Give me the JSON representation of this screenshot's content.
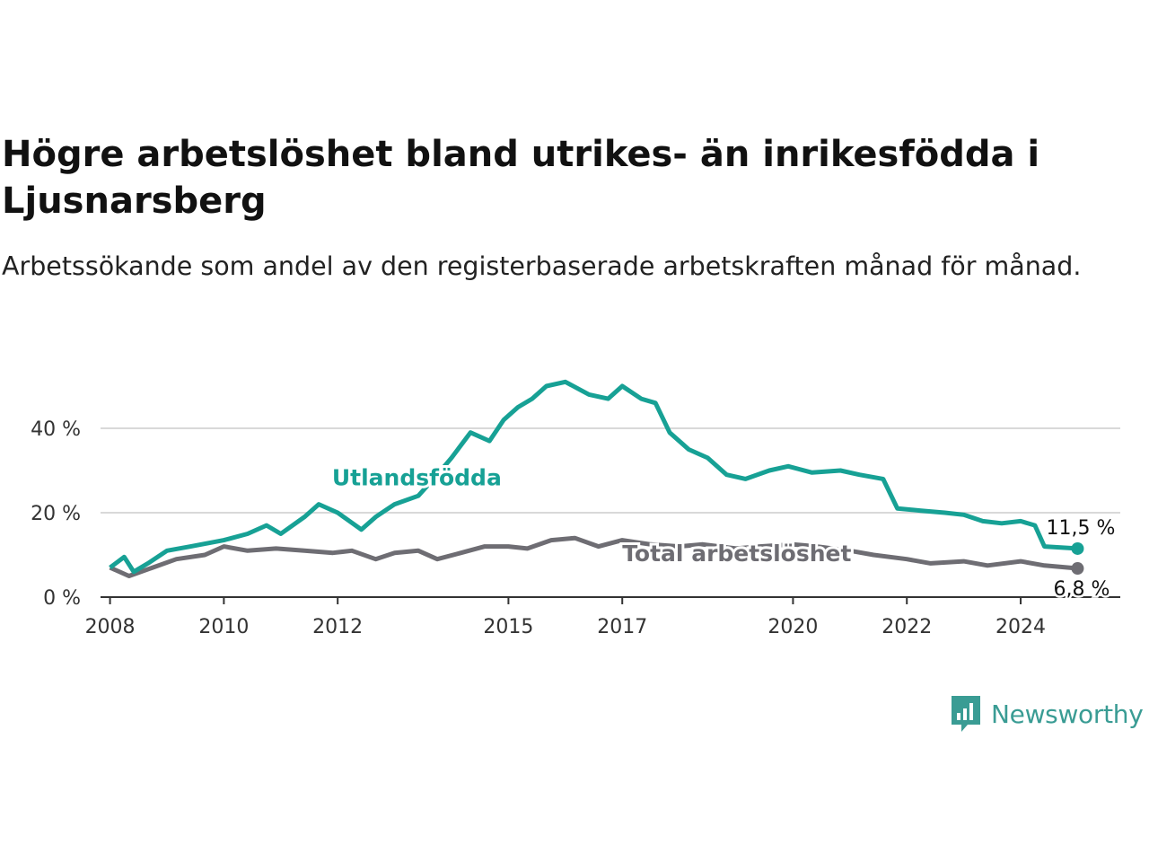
{
  "header": {
    "title": "Högre arbetslöshet bland utrikes- än inrikesfödda i Ljusnarsberg",
    "subtitle": "Arbetssökande som andel av den registerbaserade arbetskraften månad för månad."
  },
  "brand": {
    "name": "Newsworthy",
    "icon": "newsworthy-chart-bubble-icon",
    "color": "#3a9c94"
  },
  "colors": {
    "utlandsfodda": "#17a195",
    "total": "#6e6d73",
    "grid": "#d9d9d9",
    "axis": "#333333"
  },
  "chart_data": {
    "type": "line",
    "xlabel": "",
    "ylabel": "",
    "x_ticks": [
      "2008",
      "2010",
      "2012",
      "2015",
      "2017",
      "2020",
      "2022",
      "2024"
    ],
    "y_ticks": [
      "0 %",
      "20 %",
      "40 %"
    ],
    "ylim": [
      0,
      50
    ],
    "xlim": [
      "2007-11",
      "2025-10"
    ],
    "grid": true,
    "legend": "inline labels",
    "series": [
      {
        "name": "Utlandsfödda",
        "end_label": "11,5 %",
        "points": [
          [
            "2008-01",
            7
          ],
          [
            "2008-04",
            9.5
          ],
          [
            "2008-06",
            6
          ],
          [
            "2008-09",
            8
          ],
          [
            "2009-01",
            11
          ],
          [
            "2009-06",
            12
          ],
          [
            "2010-01",
            13.5
          ],
          [
            "2010-06",
            15
          ],
          [
            "2010-10",
            17
          ],
          [
            "2011-01",
            15
          ],
          [
            "2011-06",
            19
          ],
          [
            "2011-09",
            22
          ],
          [
            "2012-01",
            20
          ],
          [
            "2012-06",
            16
          ],
          [
            "2012-09",
            19
          ],
          [
            "2013-01",
            22
          ],
          [
            "2013-06",
            24
          ],
          [
            "2013-10",
            29
          ],
          [
            "2014-01",
            33
          ],
          [
            "2014-05",
            39
          ],
          [
            "2014-09",
            37
          ],
          [
            "2014-12",
            42
          ],
          [
            "2015-03",
            45
          ],
          [
            "2015-06",
            47
          ],
          [
            "2015-09",
            50
          ],
          [
            "2016-01",
            51
          ],
          [
            "2016-06",
            48
          ],
          [
            "2016-10",
            47
          ],
          [
            "2017-01",
            50
          ],
          [
            "2017-05",
            47
          ],
          [
            "2017-08",
            46
          ],
          [
            "2017-11",
            39
          ],
          [
            "2018-03",
            35
          ],
          [
            "2018-07",
            33
          ],
          [
            "2018-11",
            29
          ],
          [
            "2019-03",
            28
          ],
          [
            "2019-08",
            30
          ],
          [
            "2019-12",
            31
          ],
          [
            "2020-05",
            29.5
          ],
          [
            "2020-11",
            30
          ],
          [
            "2021-03",
            29
          ],
          [
            "2021-08",
            28
          ],
          [
            "2021-11",
            21
          ],
          [
            "2022-04",
            20.5
          ],
          [
            "2022-09",
            20
          ],
          [
            "2023-01",
            19.5
          ],
          [
            "2023-05",
            18
          ],
          [
            "2023-09",
            17.5
          ],
          [
            "2024-01",
            18
          ],
          [
            "2024-04",
            17
          ],
          [
            "2024-06",
            12
          ],
          [
            "2025-01",
            11.5
          ]
        ]
      },
      {
        "name": "Total arbetslöshet",
        "end_label": "6,8 %",
        "points": [
          [
            "2008-01",
            7
          ],
          [
            "2008-05",
            5
          ],
          [
            "2008-10",
            7
          ],
          [
            "2009-03",
            9
          ],
          [
            "2009-09",
            10
          ],
          [
            "2010-01",
            12
          ],
          [
            "2010-06",
            11
          ],
          [
            "2010-12",
            11.5
          ],
          [
            "2011-06",
            11
          ],
          [
            "2011-12",
            10.5
          ],
          [
            "2012-04",
            11
          ],
          [
            "2012-09",
            9
          ],
          [
            "2013-01",
            10.5
          ],
          [
            "2013-06",
            11
          ],
          [
            "2013-10",
            9
          ],
          [
            "2014-03",
            10.5
          ],
          [
            "2014-08",
            12
          ],
          [
            "2015-01",
            12
          ],
          [
            "2015-05",
            11.5
          ],
          [
            "2015-10",
            13.5
          ],
          [
            "2016-03",
            14
          ],
          [
            "2016-08",
            12
          ],
          [
            "2017-01",
            13.5
          ],
          [
            "2017-07",
            12.5
          ],
          [
            "2018-01",
            12
          ],
          [
            "2018-06",
            12.5
          ],
          [
            "2019-01",
            11.5
          ],
          [
            "2019-06",
            12
          ],
          [
            "2020-01",
            12.5
          ],
          [
            "2020-06",
            12
          ],
          [
            "2021-01",
            11
          ],
          [
            "2021-06",
            10
          ],
          [
            "2022-01",
            9
          ],
          [
            "2022-06",
            8
          ],
          [
            "2023-01",
            8.5
          ],
          [
            "2023-06",
            7.5
          ],
          [
            "2024-01",
            8.5
          ],
          [
            "2024-06",
            7.5
          ],
          [
            "2025-01",
            6.8
          ]
        ]
      }
    ]
  }
}
